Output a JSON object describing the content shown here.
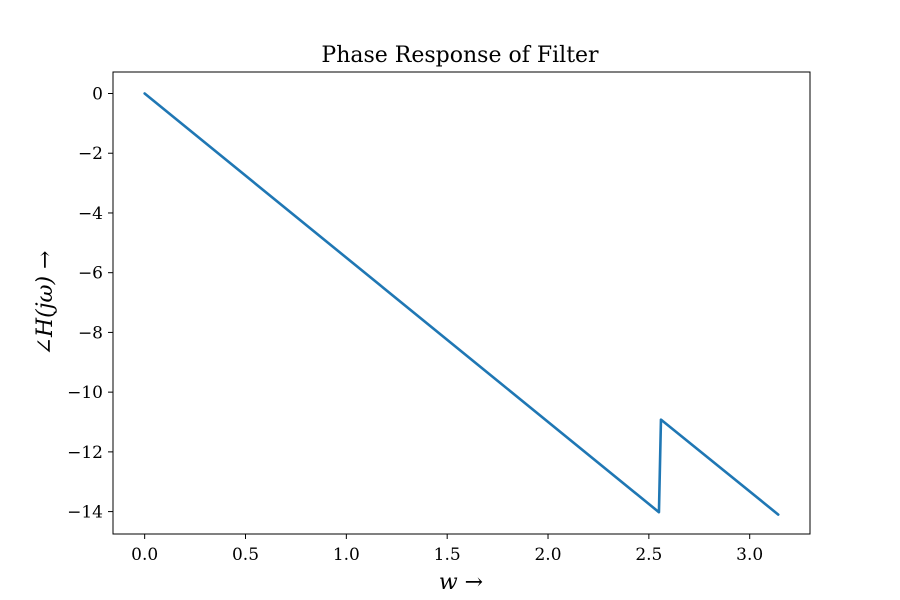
{
  "chart_data": {
    "type": "line",
    "title": "Phase Response of Filter",
    "xlabel": "w →",
    "ylabel": "∠H(jω) →",
    "xlim": [
      -0.157,
      3.299
    ],
    "ylim": [
      -14.75,
      0.72
    ],
    "xticks": [
      0.0,
      0.5,
      1.0,
      1.5,
      2.0,
      2.5,
      3.0
    ],
    "xtick_labels": [
      "0.0",
      "0.5",
      "1.0",
      "1.5",
      "2.0",
      "2.5",
      "3.0"
    ],
    "yticks": [
      0,
      -2,
      -4,
      -6,
      -8,
      -10,
      -12,
      -14
    ],
    "ytick_labels": [
      "0",
      "−2",
      "−4",
      "−6",
      "−8",
      "−10",
      "−12",
      "−14"
    ],
    "grid": false,
    "series": [
      {
        "color": "#1f77b4",
        "x": [
          0.0,
          2.55,
          2.56,
          3.1416
        ],
        "y": [
          0.0,
          -14.02,
          -10.92,
          -14.1
        ]
      }
    ]
  }
}
